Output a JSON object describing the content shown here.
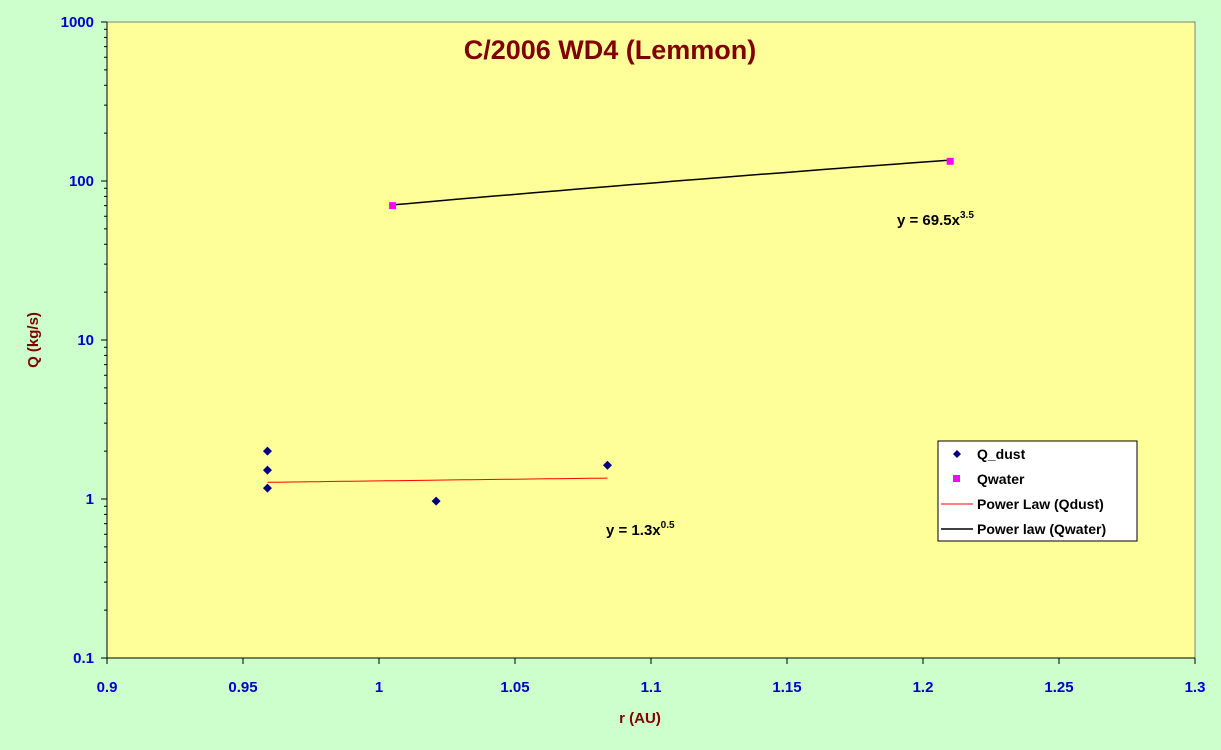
{
  "chart_data": {
    "type": "scatter",
    "title": "C/2006 WD4 (Lemmon)",
    "xlabel": "r (AU)",
    "ylabel": "Q (kg/s)",
    "xlim": [
      0.9,
      1.3
    ],
    "ylim": [
      0.1,
      1000
    ],
    "yscale": "log",
    "x_ticks": [
      "0.9",
      "0.95",
      "1",
      "1.05",
      "1.1",
      "1.15",
      "1.2",
      "1.25",
      "1.3"
    ],
    "y_ticks": [
      "0.1",
      "1",
      "10",
      "100",
      "1000"
    ],
    "grid": false,
    "legend_position": "right",
    "series": [
      {
        "name": "Q_dust",
        "marker": "diamond",
        "color": "#000080",
        "x": [
          0.959,
          0.959,
          0.959,
          1.021,
          1.084
        ],
        "y": [
          2.0,
          1.52,
          1.17,
          0.97,
          1.63
        ]
      },
      {
        "name": "Qwater",
        "marker": "square",
        "color": "#ff00ff",
        "x": [
          1.005,
          1.21
        ],
        "y": [
          70,
          133
        ]
      }
    ],
    "trendlines": [
      {
        "name": "Power Law (Qdust)",
        "color": "#ff0000",
        "x_start": 0.959,
        "x_end": 1.084,
        "coef": 1.3,
        "exp": 0.5,
        "equation": {
          "prefix": "y = 1.3x",
          "exponent": "0.5"
        }
      },
      {
        "name": "Power law (Qwater)",
        "color": "#000000",
        "x_start": 1.005,
        "x_end": 1.21,
        "coef": 69.5,
        "exp": 3.5,
        "equation": {
          "prefix": "y = 69.5x",
          "exponent": "3.5"
        }
      }
    ]
  }
}
